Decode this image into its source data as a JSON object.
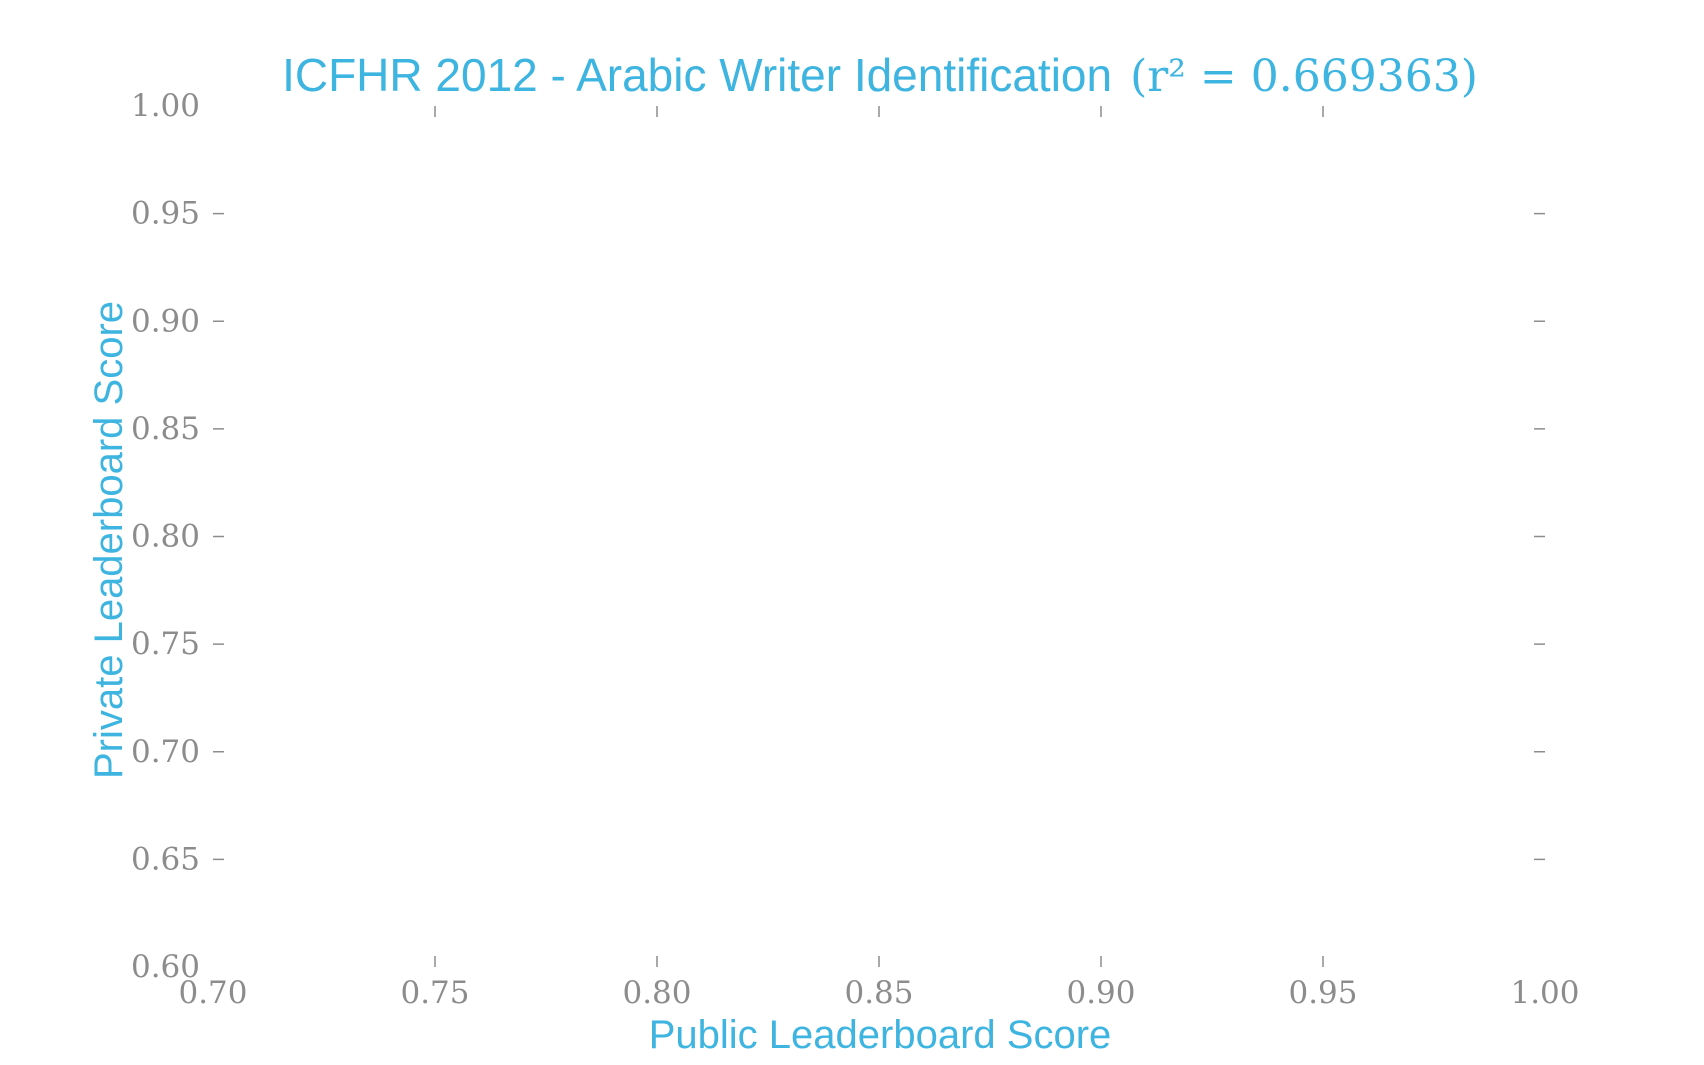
{
  "chart_data": {
    "type": "scatter",
    "title": "ICFHR 2012 - Arabic Writer Identification",
    "title_math": "(r² = 0.669363)",
    "xlabel": "Public Leaderboard Score",
    "ylabel": "Private Leaderboard Score",
    "xlim": [
      0.7,
      1.0
    ],
    "ylim": [
      0.6,
      1.0
    ],
    "xticks": [
      "0.70",
      "0.75",
      "0.80",
      "0.85",
      "0.90",
      "0.95",
      "1.00"
    ],
    "yticks": [
      "0.60",
      "0.65",
      "0.70",
      "0.75",
      "0.80",
      "0.85",
      "0.90",
      "0.95",
      "1.00"
    ],
    "grid": false,
    "colors": {
      "accent": "#3eb4e0",
      "tick": "#8c8c8c"
    },
    "points": []
  }
}
